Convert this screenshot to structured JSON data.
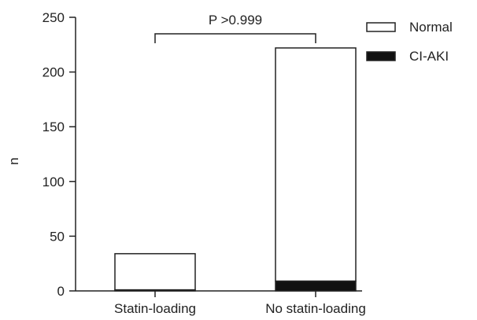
{
  "chart_data": {
    "type": "bar",
    "stacked": true,
    "categories": [
      "Statin-loading",
      "No statin-loading"
    ],
    "series": [
      {
        "name": "Normal",
        "values": [
          33,
          213
        ],
        "color": "#ffffff"
      },
      {
        "name": "CI-AKI",
        "values": [
          1,
          9
        ],
        "color": "#111111"
      }
    ],
    "ylabel": "n",
    "ylim": [
      0,
      250
    ],
    "yticks": [
      0,
      50,
      100,
      150,
      200,
      250
    ],
    "annotation": {
      "text": "P >0.999",
      "between": [
        "Statin-loading",
        "No statin-loading"
      ]
    },
    "legend_position": "top-right",
    "grid": false
  }
}
